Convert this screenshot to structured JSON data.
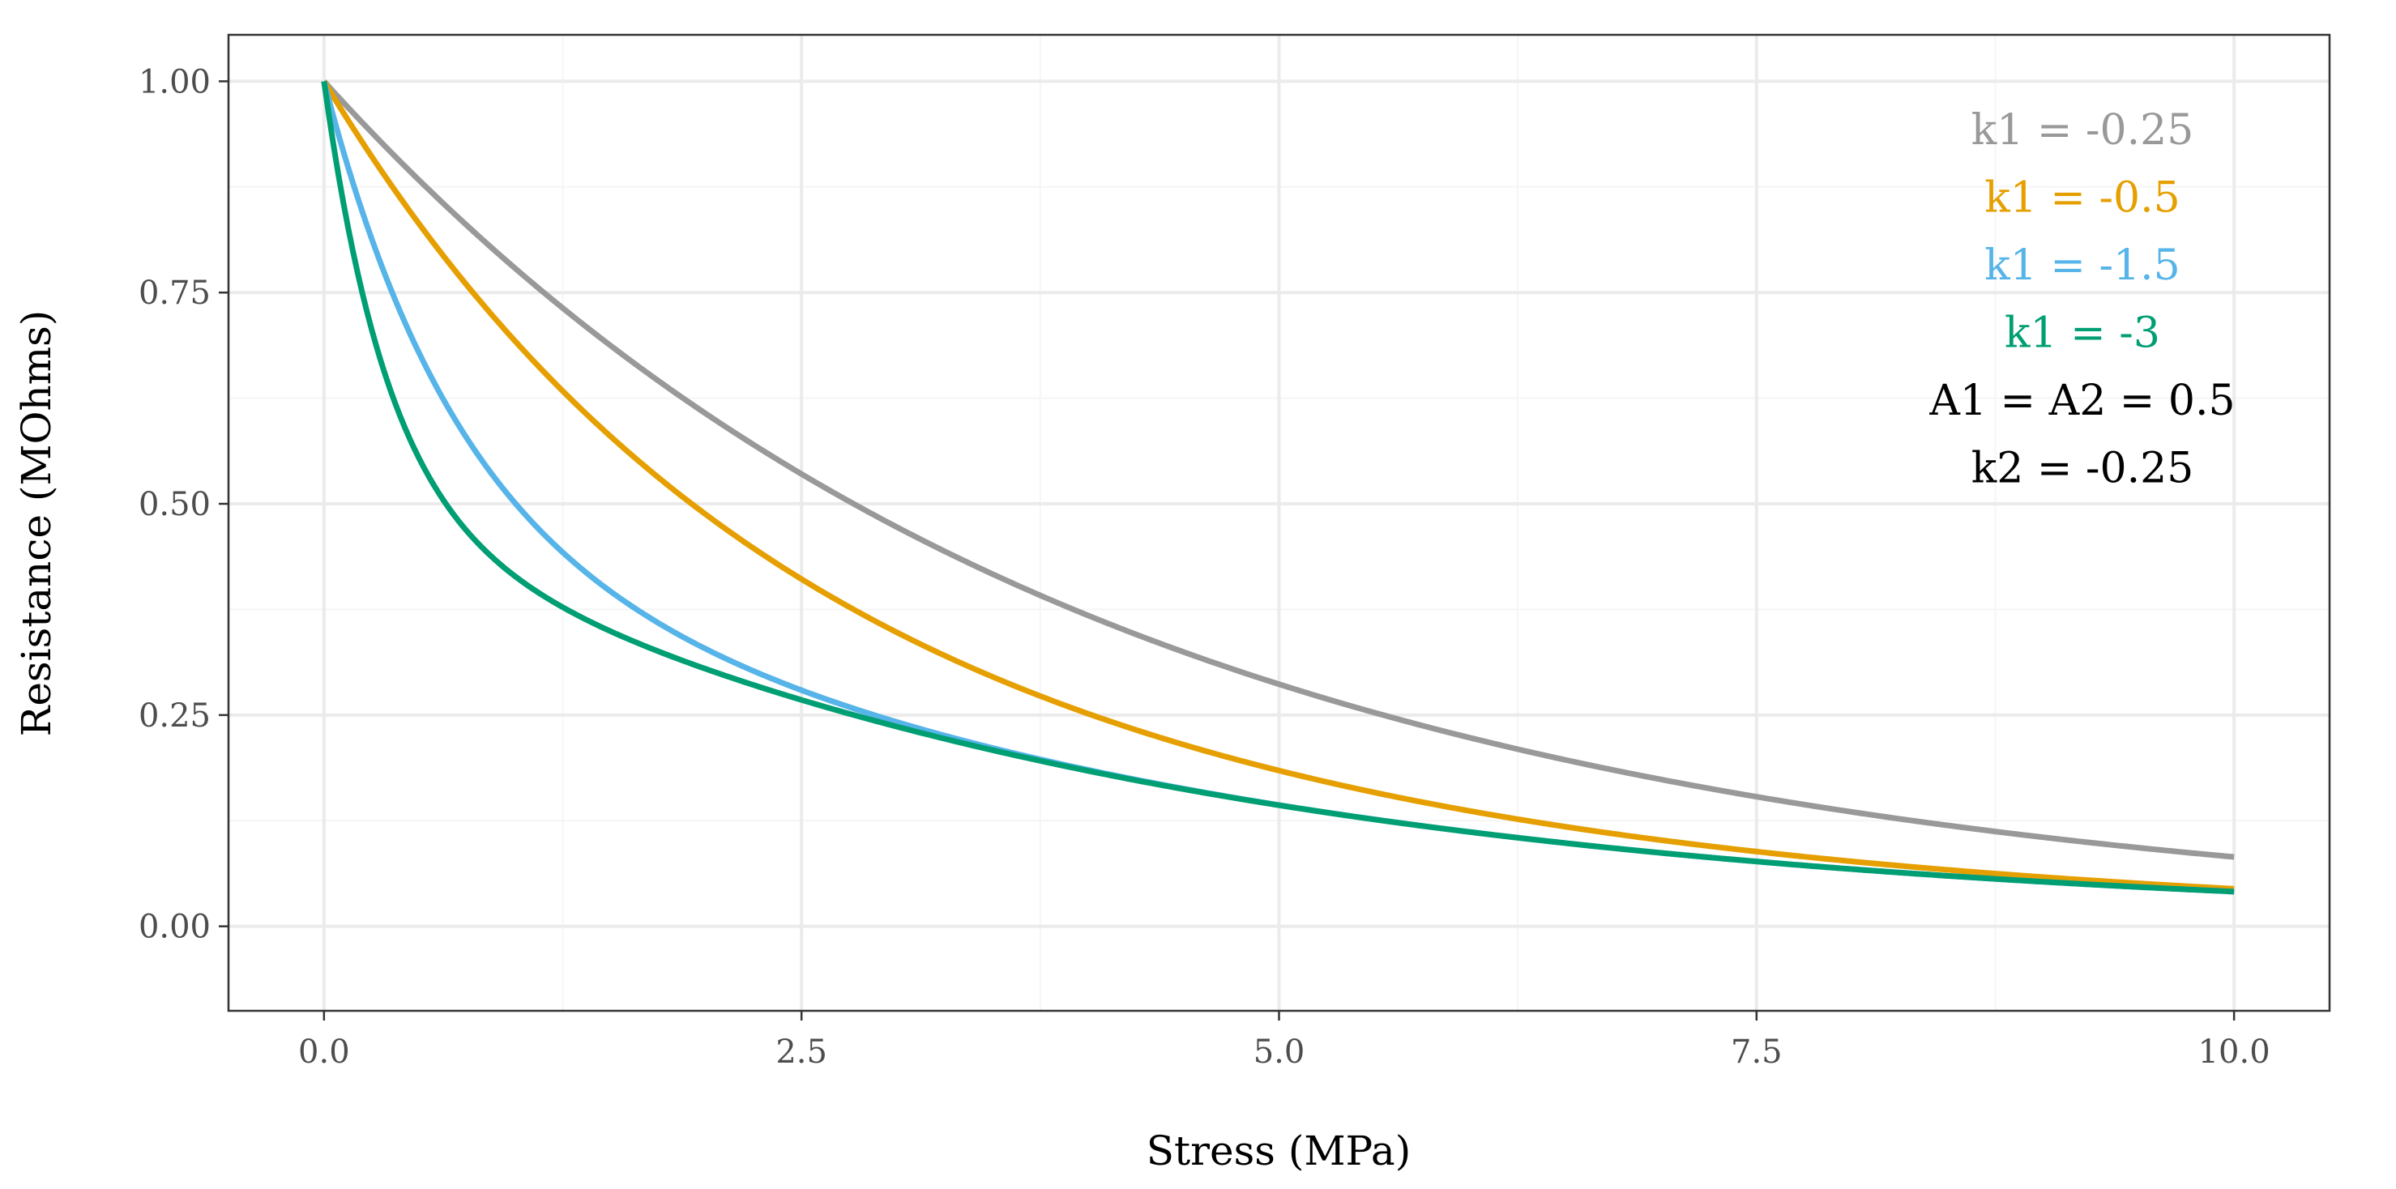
{
  "chart_data": {
    "type": "line",
    "title": "",
    "xlabel": "Stress (MPa)",
    "ylabel": "Resistance (MOhms)",
    "xlim": [
      -0.5,
      10.5
    ],
    "ylim": [
      -0.1,
      1.055
    ],
    "x_ticks": [
      0.0,
      2.5,
      5.0,
      7.5,
      10.0
    ],
    "x_tick_labels": [
      "0.0",
      "2.5",
      "5.0",
      "7.5",
      "10.0"
    ],
    "x_minor_ticks": [
      1.25,
      3.75,
      6.25,
      8.75
    ],
    "y_ticks": [
      0.0,
      0.25,
      0.5,
      0.75,
      1.0
    ],
    "y_tick_labels": [
      "0.00",
      "0.25",
      "0.50",
      "0.75",
      "1.00"
    ],
    "y_minor_ticks": [
      0.125,
      0.375,
      0.625,
      0.875
    ],
    "grid": true,
    "legend": "none",
    "model": "R = A1*exp(k1*x) + A2*exp(k2*x)",
    "x_range": [
      0,
      10
    ],
    "series": [
      {
        "name": "k1 = -0.25",
        "A1": 0.5,
        "k1": -0.25,
        "A2": 0.5,
        "k2": -0.25,
        "color": "#999999"
      },
      {
        "name": "k1 = -0.5",
        "A1": 0.5,
        "k1": -0.5,
        "A2": 0.5,
        "k2": -0.25,
        "color": "#E69F00"
      },
      {
        "name": "k1 = -1.5",
        "A1": 0.5,
        "k1": -1.5,
        "A2": 0.5,
        "k2": -0.25,
        "color": "#56B4E9"
      },
      {
        "name": "k1 = -3",
        "A1": 0.5,
        "k1": -3,
        "A2": 0.5,
        "k2": -0.25,
        "color": "#009E73"
      }
    ],
    "annotations": [
      {
        "text": "k1 = -0.25",
        "color": "#999999"
      },
      {
        "text": "k1 = -0.5",
        "color": "#E69F00"
      },
      {
        "text": "k1 = -1.5",
        "color": "#56B4E9"
      },
      {
        "text": "k1 = -3",
        "color": "#009E73"
      },
      {
        "text": "A1 = A2 = 0.5",
        "color": "#000000"
      },
      {
        "text": "k2 = -0.25",
        "color": "#000000"
      }
    ]
  },
  "colors": {
    "panel_border": "#333333",
    "grid_major": "#ebebeb",
    "grid_minor": "#f5f5f5",
    "tick_text": "#4d4d4d"
  }
}
